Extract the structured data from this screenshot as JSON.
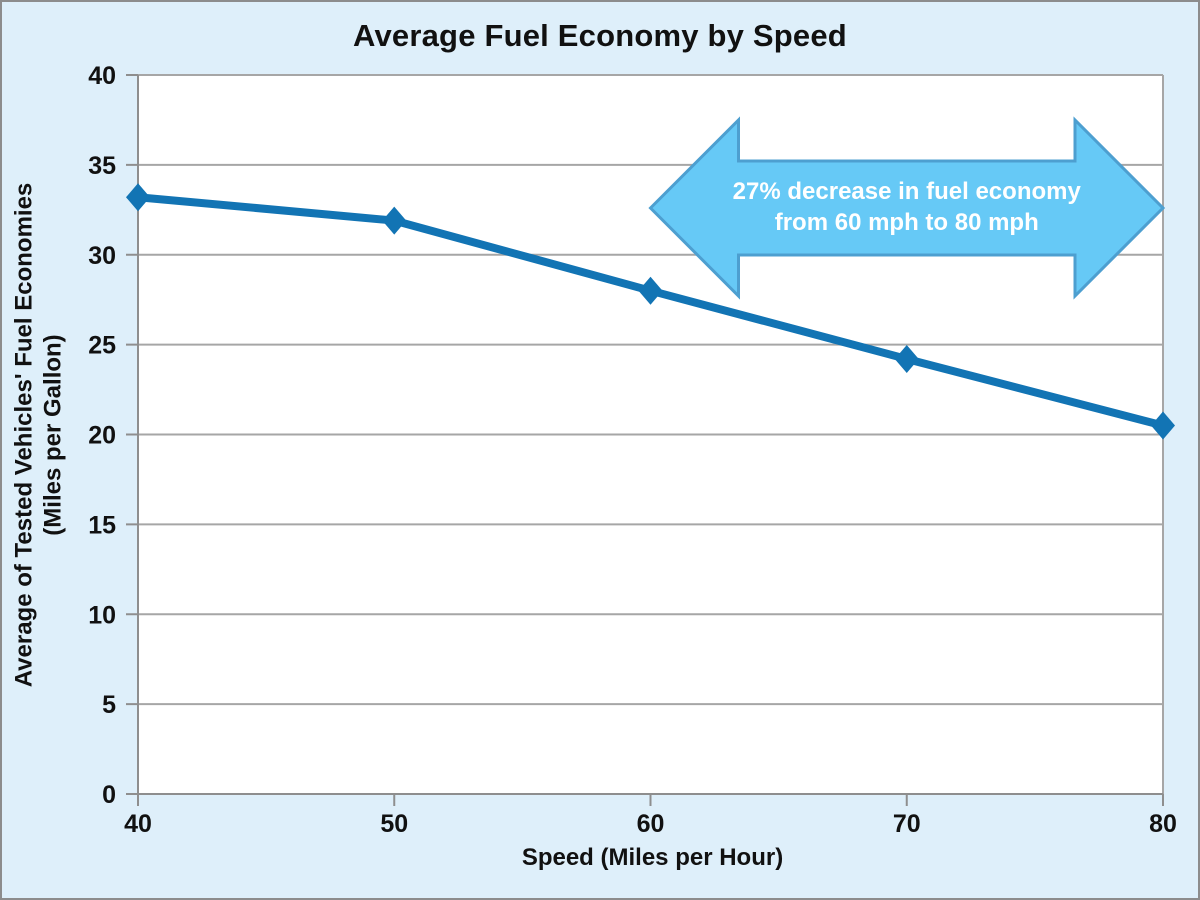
{
  "page": {
    "background": "#DEEFFA",
    "frame_border_color": "#8C8C8C"
  },
  "chart_data": {
    "type": "line",
    "title": "Average Fuel Economy by Speed",
    "xlabel": "Speed (Miles per Hour)",
    "ylabel_lines": [
      "Average of Tested Vehicles' Fuel Economies",
      "(Miles per Gallon)"
    ],
    "x": [
      40,
      50,
      60,
      70,
      80
    ],
    "series": [
      {
        "name": "Average fuel economy",
        "values": [
          33.2,
          31.9,
          28.0,
          24.2,
          20.5
        ]
      }
    ],
    "xlim": [
      40,
      80
    ],
    "ylim": [
      0,
      40
    ],
    "xticks": [
      40,
      50,
      60,
      70,
      80
    ],
    "yticks": [
      0,
      5,
      10,
      15,
      20,
      25,
      30,
      35,
      40
    ],
    "grid": "horizontal",
    "legend": "none",
    "plot_bg": "#FFFFFF",
    "gridline_color": "#A6A6A6",
    "axis_color": "#8E8E8E",
    "text_color": "#111111",
    "line_color": "#1274B4",
    "marker": "diamond",
    "annotation": {
      "shape": "double-arrow",
      "lines": [
        "27% decrease in fuel economy",
        "from 60 mph to 80 mph"
      ],
      "x_from": 60,
      "x_to": 80,
      "fill": "#66C9F6",
      "stroke": "#4D9FD0",
      "text_color": "#FFFFFF"
    }
  }
}
